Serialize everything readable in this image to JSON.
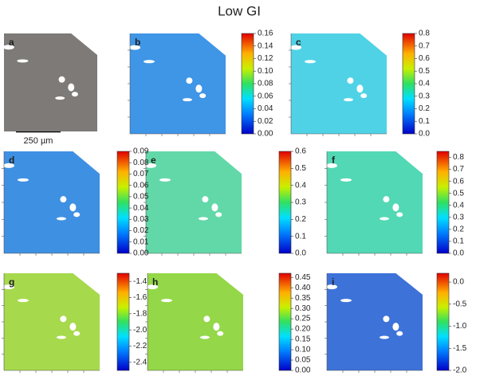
{
  "title": "Low GI",
  "scale_bar": "250 µm",
  "panels": [
    {
      "label": "a",
      "color": "#7d7a77"
    },
    {
      "label": "b",
      "color": "#3f95e6"
    },
    {
      "label": "c",
      "color": "#4fd2e6"
    },
    {
      "label": "d",
      "color": "#3e90e2"
    },
    {
      "label": "e",
      "color": "#62d8a8"
    },
    {
      "label": "f",
      "color": "#52d8b4"
    },
    {
      "label": "g",
      "color": "#a6d94c"
    },
    {
      "label": "h",
      "color": "#94d748"
    },
    {
      "label": "i",
      "color": "#3d72d8"
    }
  ],
  "colorbars": [
    {
      "lim": [
        0,
        0.16
      ],
      "ticks": [
        {
          "value": 0,
          "label": "0.00"
        },
        0.02,
        0.04,
        0.06,
        0.08,
        {
          "value": 0.1,
          "label": "0.10"
        },
        0.12,
        0.14,
        0.16
      ]
    },
    {
      "lim": [
        0,
        0.8
      ],
      "ticks": [
        {
          "value": 0,
          "label": "0.0"
        },
        0.1,
        0.2,
        0.3,
        0.4,
        0.5,
        0.6,
        0.7,
        0.8
      ]
    },
    {
      "lim": [
        0,
        0.09
      ],
      "ticks": [
        {
          "value": 0,
          "label": "0.00"
        },
        0.01,
        0.02,
        0.03,
        0.04,
        0.05,
        0.06,
        0.07,
        0.08,
        0.09
      ]
    },
    {
      "lim": [
        0,
        0.6
      ],
      "ticks": [
        {
          "value": 0,
          "label": "0.0"
        },
        0.1,
        0.2,
        0.3,
        0.4,
        0.5,
        0.6
      ]
    },
    {
      "lim": [
        0,
        0.85
      ],
      "ticks": [
        {
          "value": 0,
          "label": "0.0"
        },
        0.1,
        0.2,
        0.3,
        0.4,
        0.5,
        0.6,
        0.7,
        0.8
      ]
    },
    {
      "lim": [
        -2.5,
        -1.3
      ],
      "ticks": [
        -2.4,
        -2.2,
        {
          "value": -2,
          "label": "-2.0"
        },
        -1.8,
        -1.6,
        -1.4
      ]
    },
    {
      "lim": [
        0,
        0.47
      ],
      "ticks": [
        {
          "value": 0,
          "label": "0.00"
        },
        0.05,
        {
          "value": 0.1,
          "label": "0.10"
        },
        0.15,
        {
          "value": 0.2,
          "label": "0.20"
        },
        0.25,
        {
          "value": 0.3,
          "label": "0.30"
        },
        0.35,
        {
          "value": 0.4,
          "label": "0.40"
        },
        0.45
      ]
    },
    {
      "lim": [
        -2,
        0.2
      ],
      "ticks": [
        {
          "value": -2,
          "label": "-2.0"
        },
        -1.5,
        {
          "value": -1,
          "label": "-1.0"
        },
        -0.5,
        {
          "value": 0,
          "label": "0.0"
        }
      ]
    }
  ]
}
